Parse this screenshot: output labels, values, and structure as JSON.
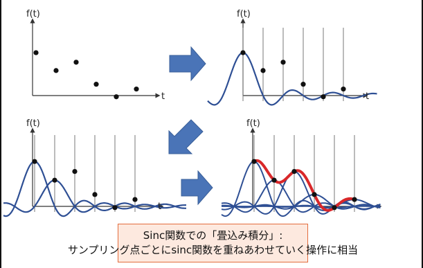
{
  "panels": [
    {
      "ylabel": "f(t)",
      "xlabel": "t"
    },
    {
      "ylabel": "f(t)",
      "xlabel": "t"
    },
    {
      "ylabel": "f(t)",
      "xlabel": "t"
    },
    {
      "ylabel": "f(t)",
      "xlabel": "t"
    }
  ],
  "samples": [
    0.72,
    0.42,
    0.56,
    0.19,
    -0.02,
    0.11
  ],
  "colors": {
    "curve": "#2e4f94",
    "sum": "#d9282a",
    "arrow": "#4a74b7",
    "axis": "#333333",
    "grid": "#777777",
    "caption_bg": "#fde9df",
    "caption_border": "#e36c3c"
  },
  "caption": {
    "line1": "Sinc関数での「畳込み積分」:",
    "line2": "サンプリング点ごとにsinc関数を重ねあわせていく操作に相当"
  }
}
